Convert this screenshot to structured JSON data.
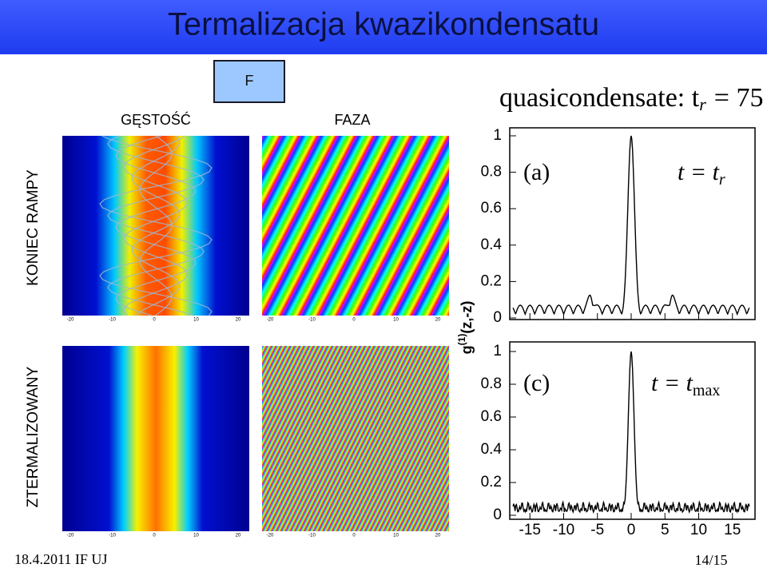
{
  "header": {
    "title": "Termalizacja kwazikondensatu"
  },
  "button": {
    "label": "F"
  },
  "columns": {
    "density": "GĘSTOŚĆ",
    "phase": "FAZA"
  },
  "rows": {
    "top": "KONIEC RAMPY",
    "bottom": "ZTERMALIZOWANY"
  },
  "image_axis": {
    "ticks": [
      -20,
      -10,
      0,
      10,
      20
    ]
  },
  "graph": {
    "title": {
      "main": "quasicondensate: t",
      "sub": "r",
      "rest": "= 75"
    },
    "ylabel": {
      "main": "g",
      "sup": "(1)",
      "rest": "(z,-z)"
    },
    "panel_a": {
      "tag": "(a)",
      "label": "t = t",
      "sub": "r"
    },
    "panel_c": {
      "tag": "(c)",
      "label": "t = t",
      "sub": "max"
    },
    "yticks": [
      1,
      0.8,
      0.6,
      0.4,
      0.2,
      0
    ],
    "xticks": [
      -15,
      -10,
      -5,
      0,
      5,
      10,
      15
    ]
  },
  "footer": {
    "date": "18.4.2011 IF UJ",
    "page": "14/15"
  }
}
